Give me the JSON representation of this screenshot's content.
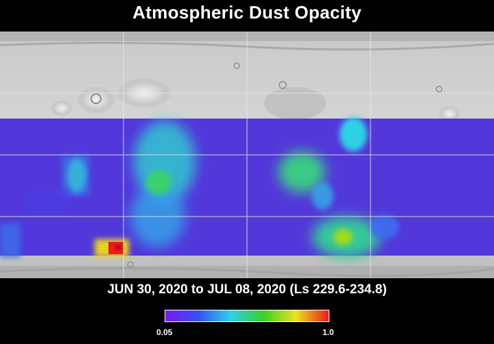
{
  "title": "Atmospheric Dust Opacity",
  "subtitle": "JUN 30, 2020 to JUL 08, 2020 (Ls 229.6-234.8)",
  "colorbar": {
    "min_label": "0.05",
    "max_label": "1.0",
    "colors": [
      "#7a1bf0",
      "#3650f3",
      "#2fd0e6",
      "#3ad02a",
      "#f0e020",
      "#e81c1c"
    ]
  },
  "map": {
    "base_color": "#5a34d8",
    "dust_features": [
      {
        "id": "a",
        "color": "#30c8d0",
        "level": 0.45
      },
      {
        "id": "b",
        "color": "#3ad070",
        "level": 0.55
      },
      {
        "id": "c",
        "color": "#3ad070",
        "level": 0.55
      },
      {
        "id": "d",
        "color": "#2fd0e6",
        "level": 0.45
      },
      {
        "id": "e",
        "color": "#9cdc1e",
        "level": 0.7
      },
      {
        "id": "f",
        "color": "#e81c1c",
        "level": 1.0
      }
    ]
  }
}
